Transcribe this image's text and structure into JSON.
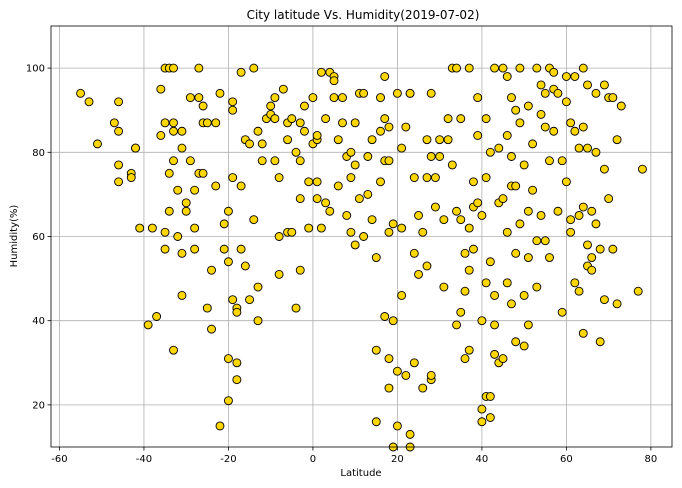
{
  "chart_data": {
    "type": "scatter",
    "title": "City latitude Vs. Humidity(2019-07-02)",
    "xlabel": "Latitude",
    "ylabel": "Humidity(%)",
    "xlim": [
      -62,
      85
    ],
    "ylim": [
      10,
      110
    ],
    "xticks": [
      -60,
      -40,
      -20,
      0,
      20,
      40,
      60,
      80
    ],
    "yticks": [
      20,
      40,
      60,
      80,
      100
    ],
    "grid": true,
    "marker_color": "#FFD700",
    "marker_edge_color": "#000000",
    "points": [
      [
        -55,
        94
      ],
      [
        -53,
        92
      ],
      [
        -51,
        82
      ],
      [
        -47,
        87
      ],
      [
        -46,
        85
      ],
      [
        -46,
        92
      ],
      [
        -46,
        77
      ],
      [
        -46,
        73
      ],
      [
        -43,
        75
      ],
      [
        -43,
        74
      ],
      [
        -42,
        81
      ],
      [
        -42,
        81
      ],
      [
        -41,
        62
      ],
      [
        -39,
        39
      ],
      [
        -38,
        62
      ],
      [
        -37,
        41
      ],
      [
        -36,
        84
      ],
      [
        -36,
        95
      ],
      [
        -35,
        100
      ],
      [
        -35,
        87
      ],
      [
        -35,
        61
      ],
      [
        -35,
        57
      ],
      [
        -34,
        100
      ],
      [
        -34,
        75
      ],
      [
        -34,
        66
      ],
      [
        -33,
        100
      ],
      [
        -33,
        87
      ],
      [
        -33,
        85
      ],
      [
        -33,
        78
      ],
      [
        -33,
        33
      ],
      [
        -32,
        71
      ],
      [
        -32,
        60
      ],
      [
        -31,
        46
      ],
      [
        -31,
        56
      ],
      [
        -31,
        81
      ],
      [
        -31,
        85
      ],
      [
        -30,
        68
      ],
      [
        -30,
        66
      ],
      [
        -29,
        93
      ],
      [
        -29,
        78
      ],
      [
        -28,
        71
      ],
      [
        -28,
        57
      ],
      [
        -28,
        62
      ],
      [
        -27,
        93
      ],
      [
        -27,
        100
      ],
      [
        -27,
        75
      ],
      [
        -26,
        87
      ],
      [
        -26,
        91
      ],
      [
        -26,
        75
      ],
      [
        -25,
        43
      ],
      [
        -25,
        87
      ],
      [
        -24,
        38
      ],
      [
        -24,
        52
      ],
      [
        -23,
        72
      ],
      [
        -23,
        87
      ],
      [
        -22,
        94
      ],
      [
        -22,
        15
      ],
      [
        -21,
        63
      ],
      [
        -21,
        57
      ],
      [
        -20,
        31
      ],
      [
        -20,
        21
      ],
      [
        -20,
        66
      ],
      [
        -20,
        54
      ],
      [
        -19,
        90
      ],
      [
        -19,
        92
      ],
      [
        -19,
        74
      ],
      [
        -19,
        45
      ],
      [
        -18,
        43
      ],
      [
        -18,
        42
      ],
      [
        -18,
        26
      ],
      [
        -18,
        30
      ],
      [
        -17,
        57
      ],
      [
        -17,
        99
      ],
      [
        -17,
        72
      ],
      [
        -16,
        53
      ],
      [
        -16,
        83
      ],
      [
        -15,
        82
      ],
      [
        -15,
        45
      ],
      [
        -14,
        100
      ],
      [
        -14,
        64
      ],
      [
        -13,
        40
      ],
      [
        -13,
        85
      ],
      [
        -13,
        48
      ],
      [
        -12,
        82
      ],
      [
        -12,
        78
      ],
      [
        -11,
        88
      ],
      [
        -10,
        91
      ],
      [
        -10,
        89
      ],
      [
        -9,
        93
      ],
      [
        -9,
        88
      ],
      [
        -9,
        78
      ],
      [
        -8,
        60
      ],
      [
        -8,
        51
      ],
      [
        -8,
        74
      ],
      [
        -7,
        95
      ],
      [
        -6,
        87
      ],
      [
        -6,
        83
      ],
      [
        -6,
        61
      ],
      [
        -5,
        61
      ],
      [
        -5,
        88
      ],
      [
        -4,
        80
      ],
      [
        -4,
        43
      ],
      [
        -3,
        78
      ],
      [
        -3,
        69
      ],
      [
        -3,
        52
      ],
      [
        -3,
        87
      ],
      [
        -2,
        91
      ],
      [
        -2,
        85
      ],
      [
        -1,
        73
      ],
      [
        -1,
        62
      ],
      [
        0,
        93
      ],
      [
        0,
        82
      ],
      [
        1,
        83
      ],
      [
        1,
        84
      ],
      [
        1,
        73
      ],
      [
        1,
        69
      ],
      [
        2,
        99
      ],
      [
        2,
        62
      ],
      [
        3,
        88
      ],
      [
        3,
        68
      ],
      [
        4,
        99
      ],
      [
        4,
        66
      ],
      [
        5,
        98
      ],
      [
        5,
        97
      ],
      [
        5,
        93
      ],
      [
        6,
        83
      ],
      [
        6,
        72
      ],
      [
        7,
        87
      ],
      [
        7,
        93
      ],
      [
        8,
        79
      ],
      [
        8,
        65
      ],
      [
        9,
        74
      ],
      [
        9,
        80
      ],
      [
        9,
        61
      ],
      [
        10,
        77
      ],
      [
        10,
        87
      ],
      [
        10,
        58
      ],
      [
        11,
        69
      ],
      [
        11,
        94
      ],
      [
        12,
        94
      ],
      [
        12,
        60
      ],
      [
        13,
        79
      ],
      [
        13,
        70
      ],
      [
        14,
        83
      ],
      [
        14,
        64
      ],
      [
        15,
        33
      ],
      [
        15,
        55
      ],
      [
        15,
        16
      ],
      [
        16,
        93
      ],
      [
        16,
        85
      ],
      [
        16,
        73
      ],
      [
        17,
        98
      ],
      [
        17,
        88
      ],
      [
        17,
        78
      ],
      [
        17,
        41
      ],
      [
        18,
        61
      ],
      [
        18,
        86
      ],
      [
        18,
        78
      ],
      [
        18,
        31
      ],
      [
        18,
        24
      ],
      [
        19,
        10
      ],
      [
        19,
        40
      ],
      [
        19,
        63
      ],
      [
        20,
        94
      ],
      [
        20,
        28
      ],
      [
        20,
        15
      ],
      [
        21,
        62
      ],
      [
        21,
        46
      ],
      [
        21,
        81
      ],
      [
        22,
        86
      ],
      [
        22,
        27
      ],
      [
        23,
        94
      ],
      [
        23,
        94
      ],
      [
        23,
        10
      ],
      [
        23,
        13
      ],
      [
        24,
        74
      ],
      [
        24,
        56
      ],
      [
        24,
        30
      ],
      [
        25,
        65
      ],
      [
        25,
        51
      ],
      [
        26,
        24
      ],
      [
        26,
        61
      ],
      [
        27,
        83
      ],
      [
        27,
        53
      ],
      [
        27,
        74
      ],
      [
        28,
        26
      ],
      [
        28,
        27
      ],
      [
        28,
        94
      ],
      [
        28,
        79
      ],
      [
        29,
        67
      ],
      [
        29,
        74
      ],
      [
        30,
        83
      ],
      [
        30,
        79
      ],
      [
        31,
        48
      ],
      [
        31,
        64
      ],
      [
        32,
        83
      ],
      [
        32,
        88
      ],
      [
        33,
        100
      ],
      [
        33,
        77
      ],
      [
        34,
        100
      ],
      [
        34,
        66
      ],
      [
        34,
        39
      ],
      [
        35,
        42
      ],
      [
        35,
        64
      ],
      [
        35,
        88
      ],
      [
        36,
        31
      ],
      [
        36,
        56
      ],
      [
        36,
        47
      ],
      [
        37,
        62
      ],
      [
        37,
        52
      ],
      [
        37,
        100
      ],
      [
        37,
        33
      ],
      [
        38,
        73
      ],
      [
        38,
        67
      ],
      [
        38,
        57
      ],
      [
        39,
        93
      ],
      [
        39,
        68
      ],
      [
        39,
        84
      ],
      [
        40,
        16
      ],
      [
        40,
        40
      ],
      [
        40,
        19
      ],
      [
        40,
        65
      ],
      [
        41,
        49
      ],
      [
        41,
        22
      ],
      [
        41,
        88
      ],
      [
        41,
        74
      ],
      [
        42,
        22
      ],
      [
        42,
        17
      ],
      [
        42,
        80
      ],
      [
        42,
        54
      ],
      [
        43,
        100
      ],
      [
        43,
        46
      ],
      [
        43,
        39
      ],
      [
        43,
        32
      ],
      [
        44,
        81
      ],
      [
        44,
        68
      ],
      [
        44,
        30
      ],
      [
        45,
        100
      ],
      [
        45,
        69
      ],
      [
        45,
        31
      ],
      [
        46,
        98
      ],
      [
        46,
        84
      ],
      [
        46,
        61
      ],
      [
        46,
        49
      ],
      [
        47,
        93
      ],
      [
        47,
        79
      ],
      [
        47,
        72
      ],
      [
        47,
        44
      ],
      [
        48,
        90
      ],
      [
        48,
        72
      ],
      [
        48,
        56
      ],
      [
        48,
        35
      ],
      [
        49,
        100
      ],
      [
        49,
        87
      ],
      [
        49,
        63
      ],
      [
        50,
        46
      ],
      [
        50,
        34
      ],
      [
        50,
        77
      ],
      [
        51,
        91
      ],
      [
        51,
        66
      ],
      [
        51,
        55
      ],
      [
        51,
        39
      ],
      [
        52,
        82
      ],
      [
        52,
        71
      ],
      [
        53,
        100
      ],
      [
        53,
        59
      ],
      [
        53,
        48
      ],
      [
        54,
        96
      ],
      [
        54,
        89
      ],
      [
        54,
        65
      ],
      [
        55,
        94
      ],
      [
        55,
        86
      ],
      [
        55,
        59
      ],
      [
        56,
        100
      ],
      [
        56,
        78
      ],
      [
        56,
        55
      ],
      [
        57,
        99
      ],
      [
        57,
        95
      ],
      [
        57,
        85
      ],
      [
        58,
        94
      ],
      [
        58,
        66
      ],
      [
        59,
        78
      ],
      [
        59,
        42
      ],
      [
        60,
        98
      ],
      [
        60,
        92
      ],
      [
        60,
        73
      ],
      [
        61,
        87
      ],
      [
        61,
        61
      ],
      [
        61,
        64
      ],
      [
        62,
        98
      ],
      [
        62,
        85
      ],
      [
        62,
        49
      ],
      [
        63,
        81
      ],
      [
        63,
        65
      ],
      [
        63,
        47
      ],
      [
        64,
        100
      ],
      [
        64,
        86
      ],
      [
        64,
        67
      ],
      [
        64,
        37
      ],
      [
        65,
        96
      ],
      [
        65,
        81
      ],
      [
        65,
        58
      ],
      [
        65,
        53
      ],
      [
        66,
        66
      ],
      [
        66,
        55
      ],
      [
        66,
        52
      ],
      [
        67,
        94
      ],
      [
        67,
        80
      ],
      [
        67,
        63
      ],
      [
        68,
        57
      ],
      [
        68,
        35
      ],
      [
        69,
        96
      ],
      [
        69,
        76
      ],
      [
        69,
        45
      ],
      [
        70,
        93
      ],
      [
        70,
        69
      ],
      [
        71,
        93
      ],
      [
        71,
        57
      ],
      [
        72,
        83
      ],
      [
        72,
        44
      ],
      [
        73,
        91
      ],
      [
        77,
        47
      ],
      [
        78,
        76
      ]
    ]
  }
}
